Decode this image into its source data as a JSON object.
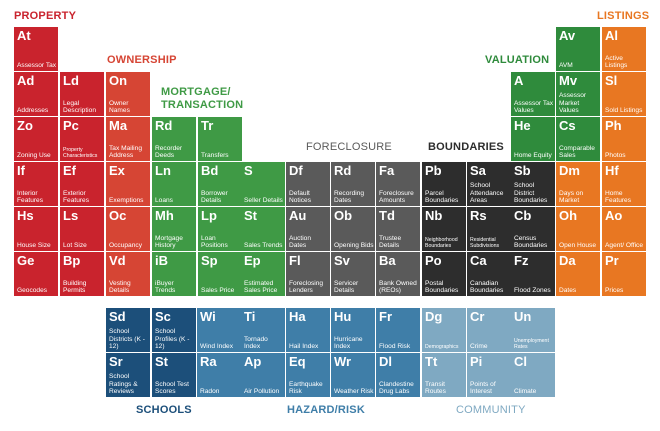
{
  "colors": {
    "property": "#c9232d",
    "ownership": "#d64534",
    "mortgage": "#3f9a45",
    "valuation": "#2f8b3c",
    "foreclosure": "#5a5a5a",
    "boundaries": "#2d2d2d",
    "listings": "#e87722",
    "schools": "#1c4f7a",
    "hazard": "#3f7ea8",
    "community": "#7fa9c2"
  },
  "categories": {
    "property": "PROPERTY",
    "listings": "LISTINGS",
    "ownership": "OWNERSHIP",
    "mortgage_line1": "MORTGAGE/",
    "mortgage_line2": "TRANSACTION",
    "valuation": "VALUATION",
    "foreclosure": "FORECLOSURE",
    "boundaries": "BOUNDARIES",
    "schools": "SCHOOLS",
    "hazard": "HAZARD/RISK",
    "community": "COMMUNITY"
  },
  "tiles": {
    "at": {
      "sym": "At",
      "name": "Assessor Tax"
    },
    "ad": {
      "sym": "Ad",
      "name": "Addresses"
    },
    "zo": {
      "sym": "Zo",
      "name": "Zoning Use"
    },
    "if": {
      "sym": "If",
      "name": "Interior Features"
    },
    "hs": {
      "sym": "Hs",
      "name": "House Size"
    },
    "ge": {
      "sym": "Ge",
      "name": "Geocodes"
    },
    "ld": {
      "sym": "Ld",
      "name": "Legal Description"
    },
    "pc": {
      "sym": "Pc",
      "name": "Property Characteristics"
    },
    "ef": {
      "sym": "Ef",
      "name": "Exterior Features"
    },
    "ls": {
      "sym": "Ls",
      "name": "Lot Size"
    },
    "bp": {
      "sym": "Bp",
      "name": "Building Permits"
    },
    "on": {
      "sym": "On",
      "name": "Owner Names"
    },
    "ma": {
      "sym": "Ma",
      "name": "Tax Mailing Address"
    },
    "ex": {
      "sym": "Ex",
      "name": "Exemptions"
    },
    "oc": {
      "sym": "Oc",
      "name": "Occupancy"
    },
    "vd": {
      "sym": "Vd",
      "name": "Vesting Details"
    },
    "rd1": {
      "sym": "Rd",
      "name": "Recorder Deeds"
    },
    "ln": {
      "sym": "Ln",
      "name": "Loans"
    },
    "mh": {
      "sym": "Mh",
      "name": "Mortgage History"
    },
    "ib": {
      "sym": "iB",
      "name": "iBuyer Trends"
    },
    "tr": {
      "sym": "Tr",
      "name": "Transfers"
    },
    "bd": {
      "sym": "Bd",
      "name": "Borrower Details"
    },
    "lp": {
      "sym": "Lp",
      "name": "Loan Positions"
    },
    "sp": {
      "sym": "Sp",
      "name": "Sales Price"
    },
    "s": {
      "sym": "S",
      "name": "Seller Details"
    },
    "st": {
      "sym": "St",
      "name": "Sales Trends"
    },
    "ep": {
      "sym": "Ep",
      "name": "Estimated Sales Price"
    },
    "df": {
      "sym": "Df",
      "name": "Default Notices"
    },
    "au": {
      "sym": "Au",
      "name": "Auction Dates"
    },
    "fl": {
      "sym": "Fl",
      "name": "Foreclosing Lenders"
    },
    "rd2": {
      "sym": "Rd",
      "name": "Recording Dates"
    },
    "ob": {
      "sym": "Ob",
      "name": "Opening Bids"
    },
    "sv": {
      "sym": "Sv",
      "name": "Servicer Details"
    },
    "fa": {
      "sym": "Fa",
      "name": "Foreclosure Amounts"
    },
    "td": {
      "sym": "Td",
      "name": "Trustee Details"
    },
    "ba": {
      "sym": "Ba",
      "name": "Bank Owned (REOs)"
    },
    "pb": {
      "sym": "Pb",
      "name": "Parcel Boundaries"
    },
    "nb": {
      "sym": "Nb",
      "name": "Neighborhood Boundaries"
    },
    "po": {
      "sym": "Po",
      "name": "Postal Boundaries"
    },
    "sa": {
      "sym": "Sa",
      "name": "School Attendance Areas"
    },
    "rs": {
      "sym": "Rs",
      "name": "Residential Subdivisions"
    },
    "ca": {
      "sym": "Ca",
      "name": "Canadian Boundaries"
    },
    "sb": {
      "sym": "Sb",
      "name": "School District Boundaries"
    },
    "cb": {
      "sym": "Cb",
      "name": "Census Boundaries"
    },
    "fz": {
      "sym": "Fz",
      "name": "Flood Zones"
    },
    "a": {
      "sym": "A",
      "name": "Assessor Tax Values"
    },
    "he": {
      "sym": "He",
      "name": "Home Equity"
    },
    "av": {
      "sym": "Av",
      "name": "AVM"
    },
    "mv": {
      "sym": "Mv",
      "name": "Assessor Market Values"
    },
    "cs": {
      "sym": "Cs",
      "name": "Comparable Sales"
    },
    "dm": {
      "sym": "Dm",
      "name": "Days on Market"
    },
    "oh": {
      "sym": "Oh",
      "name": "Open House"
    },
    "da": {
      "sym": "Da",
      "name": "Dates"
    },
    "al": {
      "sym": "Al",
      "name": "Active Listings"
    },
    "sl": {
      "sym": "Sl",
      "name": "Sold Listings"
    },
    "ph": {
      "sym": "Ph",
      "name": "Photos"
    },
    "hf": {
      "sym": "Hf",
      "name": "Home Features"
    },
    "ao": {
      "sym": "Ao",
      "name": "Agent/ Office"
    },
    "pr": {
      "sym": "Pr",
      "name": "Prices"
    },
    "sd": {
      "sym": "Sd",
      "name": "School Districts (K - 12)"
    },
    "sr": {
      "sym": "Sr",
      "name": "School Ratings & Reviews"
    },
    "sc": {
      "sym": "Sc",
      "name": "School Profiles (K - 12)"
    },
    "st2": {
      "sym": "St",
      "name": "School Test Scores"
    },
    "wi": {
      "sym": "Wi",
      "name": "Wind Index"
    },
    "ra": {
      "sym": "Ra",
      "name": "Radon"
    },
    "ti": {
      "sym": "Ti",
      "name": "Tornado Index"
    },
    "ap": {
      "sym": "Ap",
      "name": "Air Pollution"
    },
    "ha": {
      "sym": "Ha",
      "name": "Hail Index"
    },
    "eq": {
      "sym": "Eq",
      "name": "Earthquake Risk"
    },
    "hu": {
      "sym": "Hu",
      "name": "Hurricane Index"
    },
    "wr": {
      "sym": "Wr",
      "name": "Weather Risk"
    },
    "fr": {
      "sym": "Fr",
      "name": "Flood Risk"
    },
    "dl": {
      "sym": "Dl",
      "name": "Clandestine Drug Labs"
    },
    "dg": {
      "sym": "Dg",
      "name": "Demographics"
    },
    "tt": {
      "sym": "Tt",
      "name": "Transit Routes"
    },
    "cr": {
      "sym": "Cr",
      "name": "Crime"
    },
    "pi": {
      "sym": "Pi",
      "name": "Points of Interest"
    },
    "un": {
      "sym": "Un",
      "name": "Unemployment Rates"
    },
    "cl": {
      "sym": "Cl",
      "name": "Climate"
    }
  }
}
